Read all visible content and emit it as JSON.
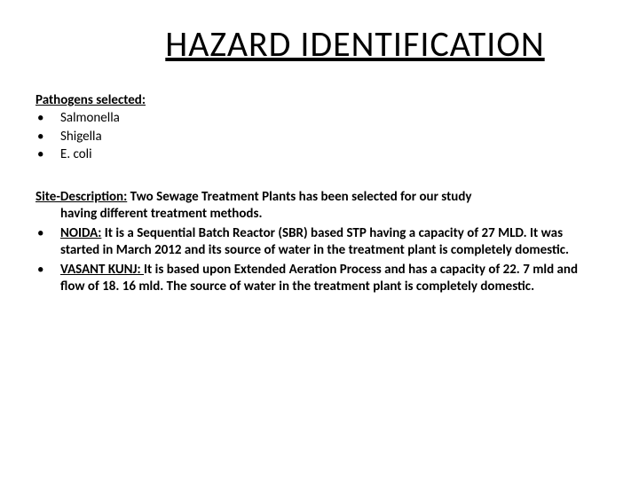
{
  "title": "HAZARD IDENTIFICATION",
  "pathogens": {
    "label": "Pathogens selected:",
    "items": [
      "Salmonella",
      "Shigella",
      "E. coli"
    ]
  },
  "site": {
    "label": "Site-Description:",
    "intro_first": " Two Sewage Treatment Plants has been selected for our study",
    "intro_cont": "having different treatment methods.",
    "items": [
      {
        "name": "NOIDA:",
        "text": " It is a Sequential Batch Reactor (SBR) based STP having a capacity of 27 MLD. It was started in March 2012 and its source of water in the treatment plant is completely domestic."
      },
      {
        "name": "VASANT KUNJ: ",
        "text": " It is based upon Extended Aeration Process and has a capacity of 22. 7 mld and flow of 18. 16 mld. The source of water in the treatment plant is completely domestic."
      }
    ]
  },
  "style": {
    "title_fontsize": 40,
    "body_fontsize": 15,
    "text_color": "#000000",
    "background_color": "#ffffff",
    "font_family": "Calibri"
  }
}
